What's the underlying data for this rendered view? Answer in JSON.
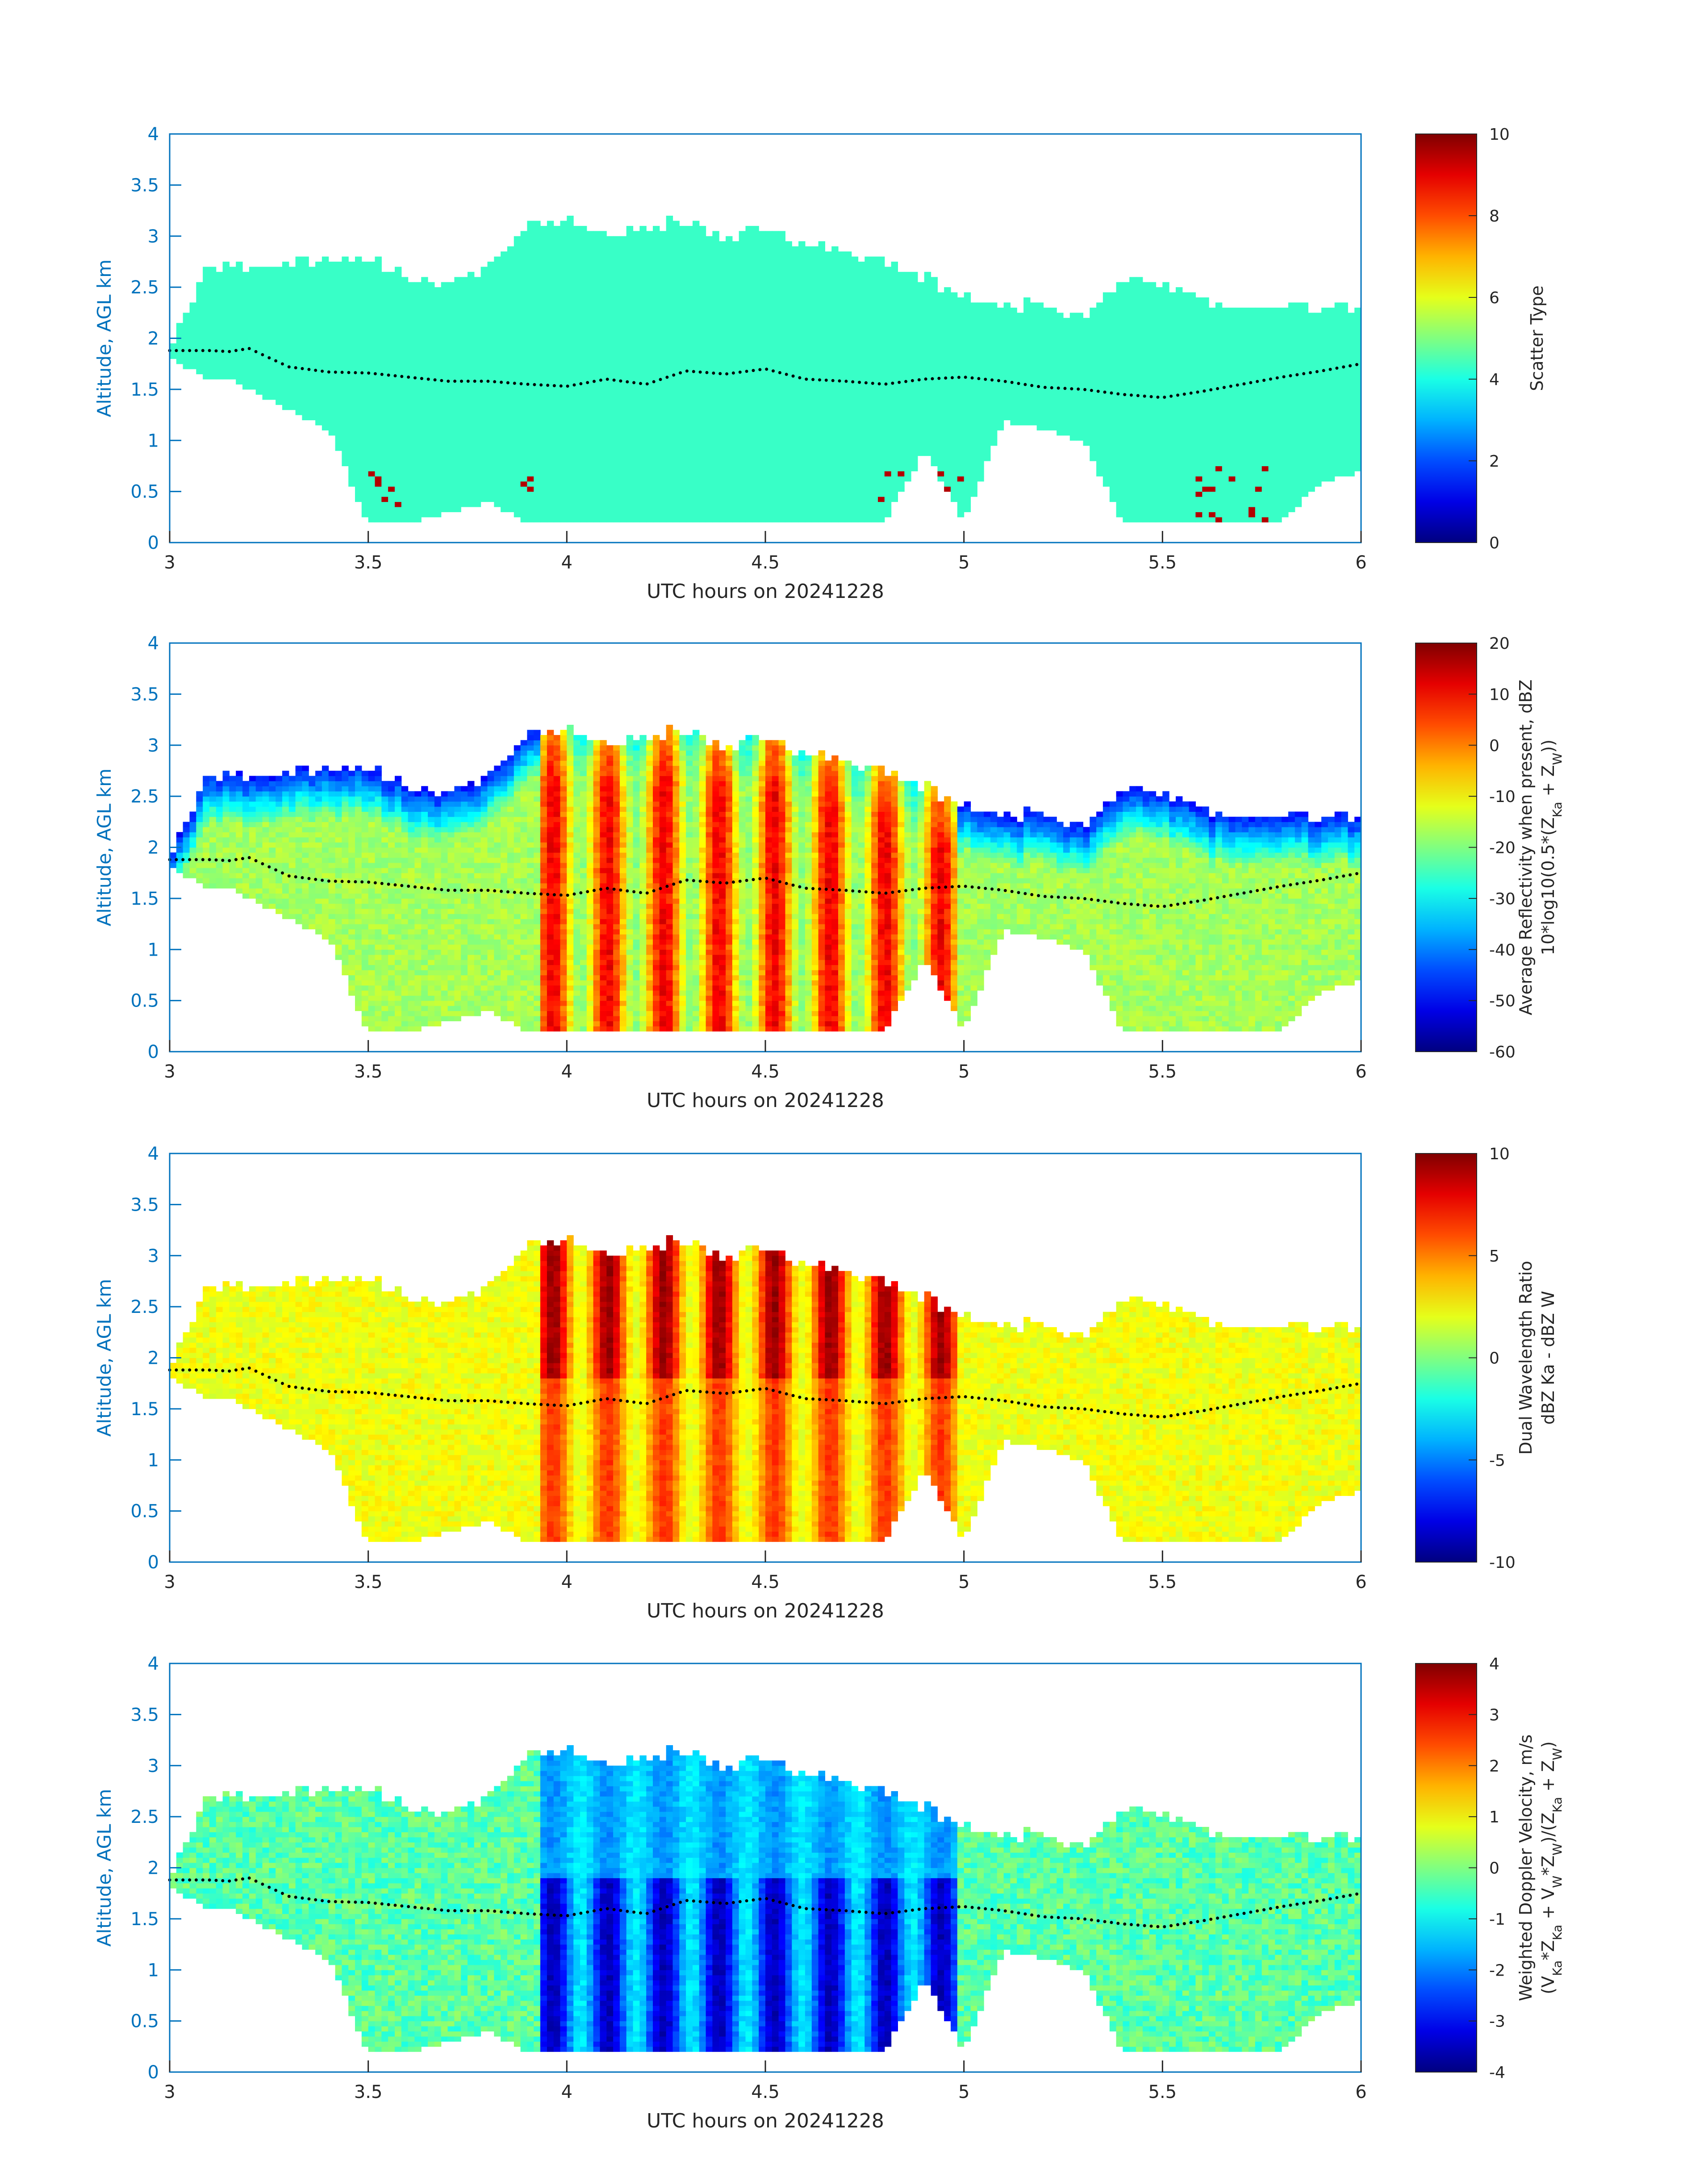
{
  "chart_data": [
    {
      "type": "heatmap",
      "xlabel": "UTC hours on 20241228",
      "ylabel": "Altitude, AGL km",
      "xlim": [
        3,
        6
      ],
      "ylim": [
        0,
        4
      ],
      "xticks": [
        "3",
        "3.5",
        "4",
        "4.5",
        "5",
        "5.5",
        "6"
      ],
      "yticks": [
        "0",
        "0.5",
        "1",
        "1.5",
        "2",
        "2.5",
        "3",
        "3.5",
        "4"
      ],
      "colorbar": {
        "label_lines": [
          "Scatter Type"
        ],
        "range": [
          0,
          10
        ],
        "ticks": [
          "0",
          "2",
          "4",
          "6",
          "8",
          "10"
        ]
      },
      "colormap": "jet",
      "field": "scatter"
    },
    {
      "type": "heatmap",
      "xlabel": "UTC hours on 20241228",
      "ylabel": "Altitude, AGL km",
      "xlim": [
        3,
        6
      ],
      "ylim": [
        0,
        4
      ],
      "xticks": [
        "3",
        "3.5",
        "4",
        "4.5",
        "5",
        "5.5",
        "6"
      ],
      "yticks": [
        "0",
        "0.5",
        "1",
        "1.5",
        "2",
        "2.5",
        "3",
        "3.5",
        "4"
      ],
      "colorbar": {
        "label_lines": [
          "Average Reflectivity when present, dBZ",
          "10*log10(0.5*(Z_Ka + Z_W))"
        ],
        "range": [
          -60,
          20
        ],
        "ticks": [
          "-60",
          "-50",
          "-40",
          "-30",
          "-20",
          "-10",
          "0",
          "10",
          "20"
        ]
      },
      "colormap": "jet",
      "field": "reflectivity"
    },
    {
      "type": "heatmap",
      "xlabel": "UTC hours on 20241228",
      "ylabel": "Altitude, AGL km",
      "xlim": [
        3,
        6
      ],
      "ylim": [
        0,
        4
      ],
      "xticks": [
        "3",
        "3.5",
        "4",
        "4.5",
        "5",
        "5.5",
        "6"
      ],
      "yticks": [
        "0",
        "0.5",
        "1",
        "1.5",
        "2",
        "2.5",
        "3",
        "3.5",
        "4"
      ],
      "colorbar": {
        "label_lines": [
          "Dual Wavelength Ratio",
          "dBZ Ka - dBZ W"
        ],
        "range": [
          -10,
          10
        ],
        "ticks": [
          "-10",
          "-5",
          "0",
          "5",
          "10"
        ]
      },
      "colormap": "jet",
      "field": "dwr"
    },
    {
      "type": "heatmap",
      "xlabel": "UTC hours on 20241228",
      "ylabel": "Altitude, AGL km",
      "xlim": [
        3,
        6
      ],
      "ylim": [
        0,
        4
      ],
      "xticks": [
        "3",
        "3.5",
        "4",
        "4.5",
        "5",
        "5.5",
        "6"
      ],
      "yticks": [
        "0",
        "0.5",
        "1",
        "1.5",
        "2",
        "2.5",
        "3",
        "3.5",
        "4"
      ],
      "colorbar": {
        "label_lines": [
          "Weighted Doppler Velocity, m/s",
          "(V_Ka*Z_Ka + V_W*Z_W)/(Z_Ka + Z_W)"
        ],
        "range": [
          -4,
          4
        ],
        "ticks": [
          "-4",
          "-3",
          "-2",
          "-1",
          "0",
          "1",
          "2",
          "3",
          "4"
        ]
      },
      "colormap": "jet",
      "field": "velocity"
    }
  ],
  "cloud_profile": {
    "hours": [
      3.0,
      3.1,
      3.15,
      3.2,
      3.3,
      3.4,
      3.5,
      3.6,
      3.7,
      3.8,
      3.9,
      4.0,
      4.1,
      4.2,
      4.3,
      4.4,
      4.5,
      4.6,
      4.7,
      4.8,
      4.9,
      5.0,
      5.1,
      5.2,
      5.3,
      5.4,
      5.5,
      5.6,
      5.7,
      5.8,
      5.9,
      6.0
    ],
    "top_km": [
      1.9,
      2.7,
      2.7,
      2.7,
      2.75,
      2.75,
      2.8,
      2.6,
      2.5,
      2.7,
      3.1,
      3.15,
      3.0,
      3.1,
      3.15,
      3.0,
      3.05,
      2.9,
      2.85,
      2.75,
      2.6,
      2.4,
      2.3,
      2.35,
      2.2,
      2.55,
      2.55,
      2.35,
      2.3,
      2.3,
      2.3,
      2.3
    ],
    "base_km": [
      1.8,
      1.6,
      1.6,
      1.5,
      1.3,
      1.1,
      0.2,
      0.2,
      0.3,
      0.4,
      0.2,
      0.2,
      0.2,
      0.2,
      0.2,
      0.2,
      0.2,
      0.2,
      0.2,
      0.2,
      0.9,
      0.2,
      1.2,
      1.1,
      1.0,
      0.2,
      0.2,
      0.2,
      0.2,
      0.2,
      0.6,
      0.7
    ],
    "marker_km": [
      1.88,
      1.88,
      1.87,
      1.9,
      1.72,
      1.67,
      1.66,
      1.62,
      1.58,
      1.58,
      1.55,
      1.53,
      1.6,
      1.55,
      1.68,
      1.65,
      1.7,
      1.6,
      1.58,
      1.55,
      1.6,
      1.62,
      1.58,
      1.52,
      1.5,
      1.45,
      1.42,
      1.48,
      1.55,
      1.62,
      1.68,
      1.75
    ]
  }
}
